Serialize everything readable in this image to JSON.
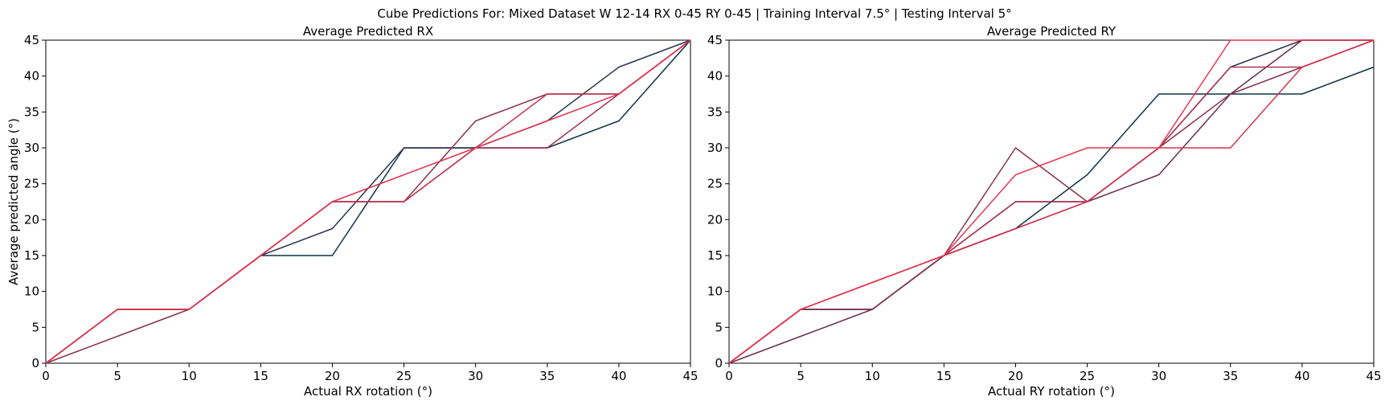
{
  "figure_title": "Cube Predictions For: Mixed Dataset W 12-14 RX 0-45 RY 0-45 | Training Interval 7.5° | Testing Interval 5°",
  "chart_data": [
    {
      "type": "line",
      "title": "Average Predicted RX",
      "xlabel": "Actual RX rotation (°)",
      "ylabel": "Average predicted angle (°)",
      "xlim": [
        0,
        45
      ],
      "ylim": [
        0,
        45
      ],
      "xticks": [
        0,
        5,
        10,
        15,
        20,
        25,
        30,
        35,
        40,
        45
      ],
      "yticks": [
        0,
        5,
        10,
        15,
        20,
        25,
        30,
        35,
        40,
        45
      ],
      "x": [
        0,
        5,
        10,
        15,
        20,
        25,
        30,
        35,
        40,
        45
      ],
      "series": [
        {
          "color": "#0d3349",
          "values": [
            0,
            7.5,
            7.5,
            15,
            15,
            30,
            30,
            30,
            33.75,
            45
          ]
        },
        {
          "color": "#2e3553",
          "values": [
            0,
            7.5,
            7.5,
            15,
            18.75,
            30,
            30,
            33.75,
            41.25,
            45
          ]
        },
        {
          "color": "#8a3150",
          "values": [
            0,
            3.75,
            7.5,
            15,
            22.5,
            22.5,
            33.75,
            37.5,
            37.5,
            45
          ]
        },
        {
          "color": "#a8324f",
          "values": [
            0,
            7.5,
            7.5,
            15,
            22.5,
            22.5,
            30,
            30,
            37.5,
            45
          ]
        },
        {
          "color": "#c8344f",
          "values": [
            0,
            7.5,
            7.5,
            15,
            22.5,
            22.5,
            30,
            37.5,
            37.5,
            45
          ]
        },
        {
          "color": "#e0354f",
          "values": [
            0,
            7.5,
            7.5,
            15,
            22.5,
            26.25,
            30,
            33.75,
            37.5,
            45
          ]
        }
      ]
    },
    {
      "type": "line",
      "title": "Average Predicted RY",
      "xlabel": "Actual RY rotation (°)",
      "ylabel": "",
      "xlim": [
        0,
        45
      ],
      "ylim": [
        0,
        45
      ],
      "xticks": [
        0,
        5,
        10,
        15,
        20,
        25,
        30,
        35,
        40,
        45
      ],
      "yticks": [
        0,
        5,
        10,
        15,
        20,
        25,
        30,
        35,
        40,
        45
      ],
      "x": [
        0,
        5,
        10,
        15,
        20,
        25,
        30,
        35,
        40,
        45
      ],
      "series": [
        {
          "color": "#0d3349",
          "values": [
            0,
            7.5,
            7.5,
            15,
            18.75,
            26.25,
            37.5,
            37.5,
            37.5,
            41.25
          ]
        },
        {
          "color": "#2e3553",
          "values": [
            0,
            7.5,
            7.5,
            15,
            22.5,
            22.5,
            30,
            41.25,
            45,
            45
          ]
        },
        {
          "color": "#6a2f4f",
          "values": [
            0,
            3.75,
            7.5,
            15,
            18.75,
            22.5,
            26.25,
            37.5,
            45,
            45
          ]
        },
        {
          "color": "#8a3150",
          "values": [
            0,
            7.5,
            7.5,
            15,
            30,
            22.5,
            30,
            37.5,
            41.25,
            45
          ]
        },
        {
          "color": "#b0334f",
          "values": [
            0,
            7.5,
            11.25,
            15,
            22.5,
            22.5,
            30,
            41.25,
            41.25,
            45
          ]
        },
        {
          "color": "#d4344f",
          "values": [
            0,
            7.5,
            11.25,
            15,
            18.75,
            22.5,
            30,
            30,
            41.25,
            45
          ]
        },
        {
          "color": "#e8374f",
          "values": [
            0,
            7.5,
            11.25,
            15,
            26.25,
            30,
            30,
            45,
            45,
            45
          ]
        }
      ]
    }
  ]
}
